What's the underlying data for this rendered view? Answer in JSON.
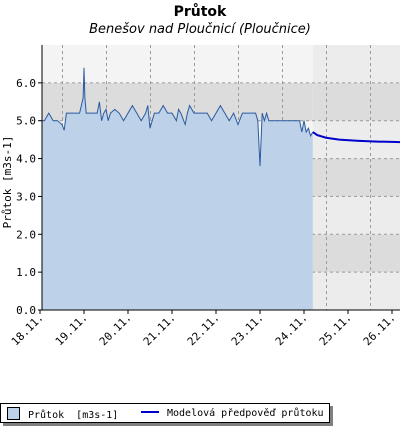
{
  "chart_data": {
    "type": "area",
    "title": "Průtok",
    "subtitle": "Benešov nad Ploučnicí (Ploučnice)",
    "ylabel": "Průtok [m3s-1]",
    "ylim": [
      0,
      7
    ],
    "yticks": [
      "0.0",
      "1.0",
      "2.0",
      "3.0",
      "4.0",
      "5.0",
      "6.0"
    ],
    "ytick_values": [
      0,
      1,
      2,
      3,
      4,
      5,
      6
    ],
    "xlim": [
      0,
      8.4
    ],
    "xtick_labels": [
      "18.11.",
      "19.11.",
      "20.11.",
      "21.11.",
      "22.11.",
      "23.11.",
      "24.11.",
      "25.11.",
      "26.11."
    ],
    "xtick_values": [
      0,
      1,
      2,
      3,
      4,
      5,
      6,
      7,
      8
    ],
    "grid": true,
    "legend_position": "bottom-left",
    "colors": {
      "observed_fill": "#bdd2e8",
      "observed_line": "#2b5aa0",
      "forecast_line": "#0000cc",
      "band_dark": "#dcdcdc",
      "band_light": "#ececec",
      "grid": "#9a9a9a"
    },
    "series": [
      {
        "name": "Průtok",
        "unit": "[m3s-1]",
        "kind": "observed",
        "x": [
          0.05,
          0.1,
          0.2,
          0.3,
          0.4,
          0.5,
          0.55,
          0.6,
          0.7,
          0.8,
          0.9,
          0.98,
          1.0,
          1.02,
          1.05,
          1.1,
          1.2,
          1.3,
          1.35,
          1.4,
          1.45,
          1.5,
          1.55,
          1.6,
          1.7,
          1.8,
          1.9,
          2.0,
          2.1,
          2.2,
          2.3,
          2.4,
          2.45,
          2.5,
          2.6,
          2.7,
          2.8,
          2.9,
          3.0,
          3.1,
          3.15,
          3.2,
          3.3,
          3.35,
          3.4,
          3.5,
          3.6,
          3.7,
          3.8,
          3.9,
          4.0,
          4.1,
          4.2,
          4.3,
          4.4,
          4.5,
          4.6,
          4.7,
          4.8,
          4.9,
          4.95,
          5.0,
          5.05,
          5.1,
          5.15,
          5.2,
          5.3,
          5.4,
          5.5,
          5.6,
          5.7,
          5.8,
          5.9,
          5.95,
          6.0,
          6.05,
          6.1,
          6.15,
          6.2
        ],
        "y": [
          5.0,
          5.0,
          5.2,
          5.0,
          5.0,
          4.9,
          4.75,
          5.2,
          5.2,
          5.2,
          5.2,
          5.6,
          6.4,
          5.6,
          5.2,
          5.2,
          5.2,
          5.2,
          5.5,
          5.0,
          5.2,
          5.3,
          5.0,
          5.2,
          5.3,
          5.2,
          5.0,
          5.2,
          5.4,
          5.2,
          5.0,
          5.2,
          5.4,
          4.8,
          5.2,
          5.2,
          5.4,
          5.2,
          5.2,
          5.0,
          5.3,
          5.2,
          4.9,
          5.2,
          5.4,
          5.2,
          5.2,
          5.2,
          5.2,
          5.0,
          5.2,
          5.4,
          5.2,
          5.0,
          5.2,
          4.9,
          5.2,
          5.2,
          5.2,
          5.2,
          5.0,
          3.8,
          5.2,
          5.0,
          5.2,
          5.0,
          5.0,
          5.0,
          5.0,
          5.0,
          5.0,
          5.0,
          5.0,
          4.7,
          5.0,
          4.7,
          4.8,
          4.6,
          4.7
        ]
      },
      {
        "name": "Modelová předpověď průtoku",
        "kind": "forecast",
        "x": [
          6.2,
          6.3,
          6.5,
          6.8,
          7.2,
          7.6,
          8.0,
          8.4
        ],
        "y": [
          4.7,
          4.62,
          4.55,
          4.5,
          4.47,
          4.45,
          4.44,
          4.43
        ]
      }
    ]
  }
}
